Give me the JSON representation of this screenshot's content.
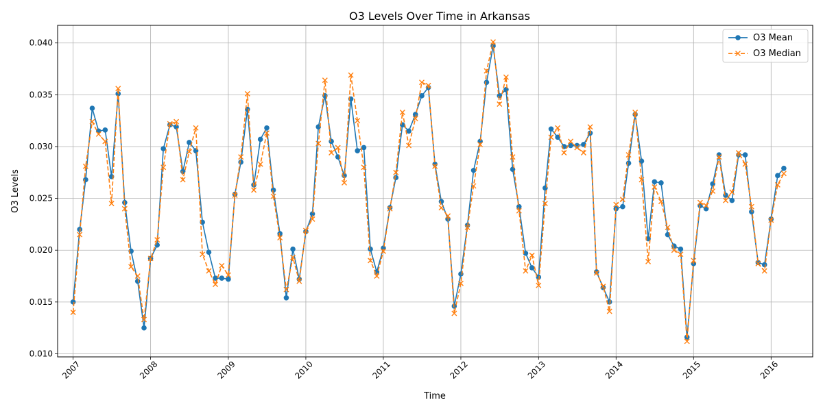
{
  "chart_data": {
    "type": "line",
    "title": "O3 Levels Over Time in Arkansas",
    "xlabel": "Time",
    "ylabel": "O3 Levels",
    "xlim": [
      "2006-10-20",
      "2016-07-15"
    ],
    "ylim": [
      0.0097,
      0.0417
    ],
    "x_ticks": [
      "2007",
      "2008",
      "2009",
      "2010",
      "2011",
      "2012",
      "2013",
      "2014",
      "2015",
      "2016"
    ],
    "y_ticks": [
      "0.010",
      "0.015",
      "0.020",
      "0.025",
      "0.030",
      "0.035",
      "0.040"
    ],
    "grid": true,
    "legend_position": "top-right",
    "x": [
      "2007-01",
      "2007-02",
      "2007-03",
      "2007-04",
      "2007-05",
      "2007-06",
      "2007-07",
      "2007-08",
      "2007-09",
      "2007-10",
      "2007-11",
      "2007-12",
      "2008-01",
      "2008-02",
      "2008-03",
      "2008-04",
      "2008-05",
      "2008-06",
      "2008-07",
      "2008-08",
      "2008-09",
      "2008-10",
      "2008-11",
      "2008-12",
      "2009-01",
      "2009-02",
      "2009-03",
      "2009-04",
      "2009-05",
      "2009-06",
      "2009-07",
      "2009-08",
      "2009-09",
      "2009-10",
      "2009-11",
      "2009-12",
      "2010-01",
      "2010-02",
      "2010-03",
      "2010-04",
      "2010-05",
      "2010-06",
      "2010-07",
      "2010-08",
      "2010-09",
      "2010-10",
      "2010-11",
      "2010-12",
      "2011-01",
      "2011-02",
      "2011-03",
      "2011-04",
      "2011-05",
      "2011-06",
      "2011-07",
      "2011-08",
      "2011-09",
      "2011-10",
      "2011-11",
      "2011-12",
      "2012-01",
      "2012-02",
      "2012-03",
      "2012-04",
      "2012-05",
      "2012-06",
      "2012-07",
      "2012-08",
      "2012-09",
      "2012-10",
      "2012-11",
      "2012-12",
      "2013-01",
      "2013-02",
      "2013-03",
      "2013-04",
      "2013-05",
      "2013-06",
      "2013-07",
      "2013-08",
      "2013-09",
      "2013-10",
      "2013-11",
      "2013-12",
      "2014-01",
      "2014-02",
      "2014-03",
      "2014-04",
      "2014-05",
      "2014-06",
      "2014-07",
      "2014-08",
      "2014-09",
      "2014-10",
      "2014-11",
      "2014-12",
      "2015-01",
      "2015-02",
      "2015-03",
      "2015-04",
      "2015-05",
      "2015-06",
      "2015-07",
      "2015-08",
      "2015-09",
      "2015-10",
      "2015-11",
      "2015-12",
      "2016-01",
      "2016-02",
      "2016-03"
    ],
    "series": [
      {
        "name": "O3 Mean",
        "color": "#1f77b4",
        "marker": "circle",
        "line_style": "solid",
        "values": [
          0.015,
          0.022,
          0.0268,
          0.0337,
          0.0315,
          0.0316,
          0.0271,
          0.0351,
          0.0246,
          0.0199,
          0.017,
          0.0125,
          0.0192,
          0.0205,
          0.0298,
          0.0321,
          0.0319,
          0.0276,
          0.0304,
          0.0296,
          0.0227,
          0.0198,
          0.0173,
          0.0173,
          0.0172,
          0.0254,
          0.0285,
          0.0336,
          0.0263,
          0.0307,
          0.0318,
          0.0258,
          0.0216,
          0.0154,
          0.0201,
          0.0172,
          0.0218,
          0.0235,
          0.0319,
          0.0349,
          0.0305,
          0.029,
          0.0272,
          0.0346,
          0.0296,
          0.0299,
          0.0201,
          0.0179,
          0.0202,
          0.0241,
          0.027,
          0.0321,
          0.0315,
          0.0331,
          0.0349,
          0.0357,
          0.0283,
          0.0247,
          0.023,
          0.0146,
          0.0177,
          0.0224,
          0.0277,
          0.0305,
          0.0362,
          0.0397,
          0.0349,
          0.0355,
          0.0278,
          0.0242,
          0.0197,
          0.0183,
          0.0174,
          0.026,
          0.0317,
          0.0309,
          0.03,
          0.0301,
          0.0301,
          0.0302,
          0.0313,
          0.0179,
          0.0164,
          0.015,
          0.024,
          0.0242,
          0.0284,
          0.0331,
          0.0286,
          0.0211,
          0.0266,
          0.0265,
          0.0215,
          0.0204,
          0.0201,
          0.0116,
          0.0187,
          0.0243,
          0.024,
          0.0264,
          0.0292,
          0.0253,
          0.0248,
          0.0292,
          0.0292,
          0.0237,
          0.0188,
          0.0186,
          0.023,
          0.0272,
          0.0279
        ]
      },
      {
        "name": "O3 Median",
        "color": "#ff7f0e",
        "marker": "x",
        "line_style": "dashed",
        "values": [
          0.014,
          0.0215,
          0.0281,
          0.0324,
          0.0312,
          0.0305,
          0.0245,
          0.0356,
          0.024,
          0.0184,
          0.0175,
          0.0133,
          0.0192,
          0.021,
          0.028,
          0.0322,
          0.0324,
          0.0268,
          0.0295,
          0.0318,
          0.0196,
          0.018,
          0.0167,
          0.0185,
          0.0176,
          0.0253,
          0.029,
          0.0351,
          0.0258,
          0.0283,
          0.0313,
          0.0252,
          0.0212,
          0.0162,
          0.0193,
          0.017,
          0.0219,
          0.023,
          0.0303,
          0.0364,
          0.0294,
          0.0299,
          0.0265,
          0.0369,
          0.0325,
          0.028,
          0.019,
          0.0175,
          0.0199,
          0.024,
          0.0275,
          0.0333,
          0.0301,
          0.0327,
          0.0362,
          0.0359,
          0.0281,
          0.0241,
          0.0233,
          0.0139,
          0.0168,
          0.0222,
          0.0262,
          0.0302,
          0.0373,
          0.0401,
          0.0341,
          0.0367,
          0.029,
          0.0238,
          0.018,
          0.0195,
          0.0166,
          0.0245,
          0.0309,
          0.0318,
          0.0294,
          0.0305,
          0.0299,
          0.0294,
          0.0319,
          0.0178,
          0.0165,
          0.0141,
          0.0244,
          0.0249,
          0.0292,
          0.0333,
          0.0268,
          0.0189,
          0.0261,
          0.0247,
          0.0222,
          0.02,
          0.0196,
          0.0112,
          0.019,
          0.0246,
          0.0243,
          0.0257,
          0.029,
          0.0248,
          0.0256,
          0.0294,
          0.0283,
          0.0242,
          0.0187,
          0.018,
          0.0229,
          0.0263,
          0.0274
        ]
      }
    ]
  }
}
